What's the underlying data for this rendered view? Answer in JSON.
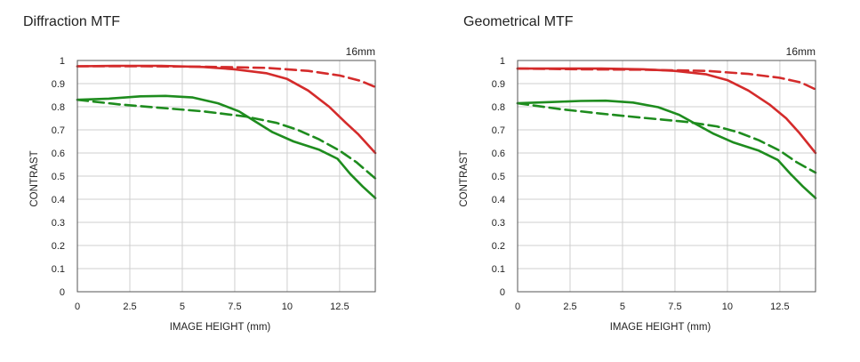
{
  "colors": {
    "sagittal": "#d42b2b",
    "meridional": "#1e8c1e",
    "grid": "#cfcfcf",
    "frame": "#555555"
  },
  "chart_data": [
    {
      "type": "line",
      "title": "Diffraction MTF",
      "annotation": "16mm",
      "xlabel": "IMAGE HEIGHT (mm)",
      "ylabel": "CONTRAST",
      "xlim": [
        0,
        14.2
      ],
      "ylim": [
        0,
        1
      ],
      "grid": true,
      "xticks": [
        0,
        2.5,
        5,
        7.5,
        10,
        12.5
      ],
      "xtick_labels": [
        "0",
        "2.5",
        "5",
        "7.5",
        "10",
        "12.5"
      ],
      "yticks": [
        0,
        0.1,
        0.2,
        0.3,
        0.4,
        0.5,
        0.6,
        0.7,
        0.8,
        0.9,
        1
      ],
      "ytick_labels": [
        "0",
        "0.1",
        "0.2",
        "0.3",
        "0.4",
        "0.5",
        "0.6",
        "0.7",
        "0.8",
        "0.9",
        "1"
      ],
      "series": [
        {
          "color": "#d42b2b",
          "dash": false,
          "points": [
            [
              0,
              0.975
            ],
            [
              2,
              0.977
            ],
            [
              4,
              0.977
            ],
            [
              6,
              0.972
            ],
            [
              7.5,
              0.962
            ],
            [
              9,
              0.945
            ],
            [
              10,
              0.92
            ],
            [
              11,
              0.87
            ],
            [
              12,
              0.8
            ],
            [
              12.8,
              0.73
            ],
            [
              13.4,
              0.68
            ],
            [
              14.2,
              0.6
            ]
          ]
        },
        {
          "color": "#d42b2b",
          "dash": true,
          "points": [
            [
              0,
              0.975
            ],
            [
              3,
              0.975
            ],
            [
              6,
              0.973
            ],
            [
              9,
              0.968
            ],
            [
              11,
              0.955
            ],
            [
              12.5,
              0.935
            ],
            [
              13.5,
              0.912
            ],
            [
              14.2,
              0.885
            ]
          ]
        },
        {
          "color": "#1e8c1e",
          "dash": false,
          "points": [
            [
              0,
              0.83
            ],
            [
              1.5,
              0.835
            ],
            [
              3,
              0.845
            ],
            [
              4.2,
              0.847
            ],
            [
              5.5,
              0.84
            ],
            [
              6.7,
              0.815
            ],
            [
              7.7,
              0.78
            ],
            [
              8.5,
              0.735
            ],
            [
              9.3,
              0.69
            ],
            [
              10.3,
              0.65
            ],
            [
              11.5,
              0.615
            ],
            [
              12.4,
              0.575
            ],
            [
              13,
              0.51
            ],
            [
              13.6,
              0.455
            ],
            [
              14.2,
              0.405
            ]
          ]
        },
        {
          "color": "#1e8c1e",
          "dash": true,
          "points": [
            [
              0,
              0.83
            ],
            [
              2,
              0.81
            ],
            [
              4,
              0.795
            ],
            [
              6,
              0.78
            ],
            [
              8,
              0.758
            ],
            [
              9.5,
              0.73
            ],
            [
              10.5,
              0.7
            ],
            [
              11.5,
              0.66
            ],
            [
              12.5,
              0.61
            ],
            [
              13.3,
              0.56
            ],
            [
              14.2,
              0.49
            ]
          ]
        }
      ]
    },
    {
      "type": "line",
      "title": "Geometrical MTF",
      "annotation": "16mm",
      "xlabel": "IMAGE HEIGHT (mm)",
      "ylabel": "CONTRAST",
      "xlim": [
        0,
        14.2
      ],
      "ylim": [
        0,
        1
      ],
      "grid": true,
      "xticks": [
        0,
        2.5,
        5,
        7.5,
        10,
        12.5
      ],
      "xtick_labels": [
        "0",
        "2.5",
        "5",
        "7.5",
        "10",
        "12.5"
      ],
      "yticks": [
        0,
        0.1,
        0.2,
        0.3,
        0.4,
        0.5,
        0.6,
        0.7,
        0.8,
        0.9,
        1
      ],
      "ytick_labels": [
        "0",
        "0.1",
        "0.2",
        "0.3",
        "0.4",
        "0.5",
        "0.6",
        "0.7",
        "0.8",
        "0.9",
        "1"
      ],
      "series": [
        {
          "color": "#d42b2b",
          "dash": false,
          "points": [
            [
              0,
              0.965
            ],
            [
              2,
              0.965
            ],
            [
              4,
              0.965
            ],
            [
              6,
              0.962
            ],
            [
              7.5,
              0.955
            ],
            [
              9,
              0.94
            ],
            [
              10,
              0.915
            ],
            [
              11,
              0.87
            ],
            [
              12,
              0.81
            ],
            [
              12.8,
              0.75
            ],
            [
              13.4,
              0.69
            ],
            [
              14.2,
              0.6
            ]
          ]
        },
        {
          "color": "#d42b2b",
          "dash": true,
          "points": [
            [
              0,
              0.965
            ],
            [
              3,
              0.962
            ],
            [
              6,
              0.96
            ],
            [
              9,
              0.955
            ],
            [
              11,
              0.942
            ],
            [
              12.5,
              0.925
            ],
            [
              13.5,
              0.905
            ],
            [
              14.2,
              0.875
            ]
          ]
        },
        {
          "color": "#1e8c1e",
          "dash": false,
          "points": [
            [
              0,
              0.815
            ],
            [
              1.5,
              0.82
            ],
            [
              3,
              0.825
            ],
            [
              4.2,
              0.826
            ],
            [
              5.5,
              0.818
            ],
            [
              6.7,
              0.798
            ],
            [
              7.7,
              0.765
            ],
            [
              8.5,
              0.725
            ],
            [
              9.3,
              0.685
            ],
            [
              10.3,
              0.645
            ],
            [
              11.5,
              0.61
            ],
            [
              12.4,
              0.57
            ],
            [
              13,
              0.51
            ],
            [
              13.6,
              0.455
            ],
            [
              14.2,
              0.405
            ]
          ]
        },
        {
          "color": "#1e8c1e",
          "dash": true,
          "points": [
            [
              0,
              0.815
            ],
            [
              2,
              0.79
            ],
            [
              4,
              0.77
            ],
            [
              6,
              0.752
            ],
            [
              8,
              0.735
            ],
            [
              9.5,
              0.715
            ],
            [
              10.5,
              0.69
            ],
            [
              11.5,
              0.655
            ],
            [
              12.5,
              0.61
            ],
            [
              13.3,
              0.56
            ],
            [
              14.2,
              0.515
            ]
          ]
        }
      ]
    }
  ]
}
